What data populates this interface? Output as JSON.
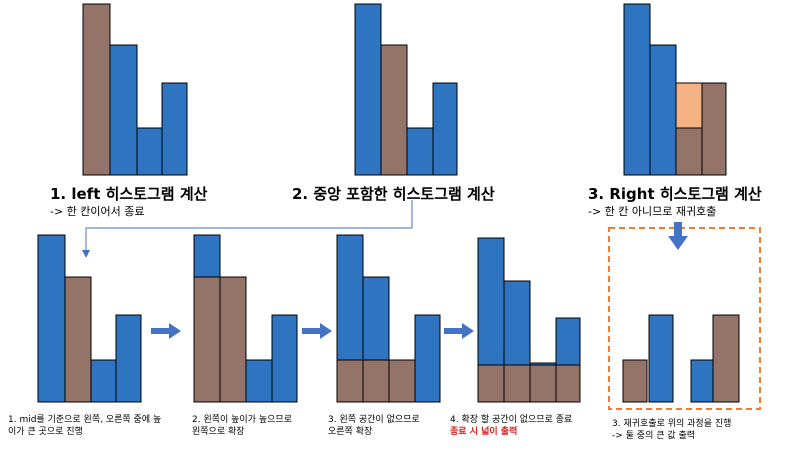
{
  "colors": {
    "blue": "#2e74c0",
    "brown": "#947468",
    "peach": "#f4b183",
    "bar_border": "#000000",
    "arrow": "#4472c4",
    "dashed_frame": "#ed7d31"
  },
  "steps": [
    {
      "title": "1. left 히스토그램 계산",
      "subtitle": "-> 한 칸이어서 종료"
    },
    {
      "title": "2. 중앙 포함한 히스토그램 계산",
      "subtitle": ""
    },
    {
      "title": "3. Right 히스토그램 계산",
      "subtitle": "-> 한 칸 아니므로 재귀호출"
    }
  ],
  "captions": [
    {
      "line1": "1. mid를 기준으로 왼쪽, 오른쪽 중에 높",
      "line2": "이가 큰 곳으로 진행"
    },
    {
      "line1": "2. 왼쪽이 높이가 높으므로",
      "line2": "왼쪽으로 확장"
    },
    {
      "line1": "3. 왼쪽 공간이 없으므로",
      "line2": "오른쪽 확장"
    },
    {
      "line1": "4. 확장 할 공간이 없으므로 종료",
      "line2": "종료 시 넓이 출력"
    },
    {
      "line1": "3. 재귀호출로 위의 과정을 진행",
      "line2": "-> 둘 중의 큰 값 출력"
    }
  ],
  "histogram_heights": [
    4,
    3,
    1,
    2
  ]
}
